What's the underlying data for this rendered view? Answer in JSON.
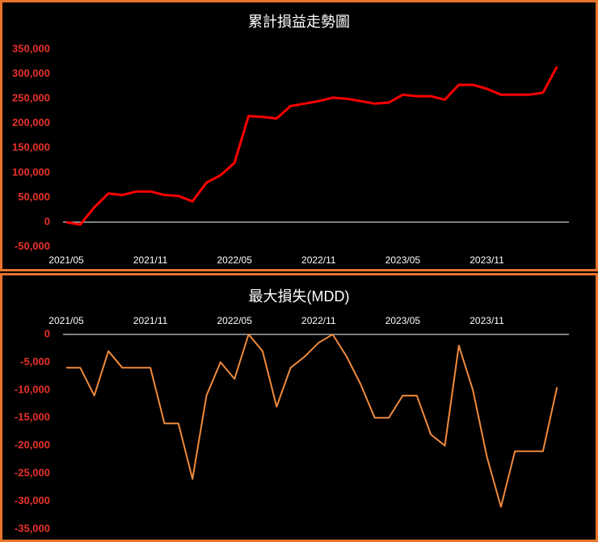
{
  "chart_data": [
    {
      "type": "line",
      "title": "累計損益走勢圖",
      "color": "#ff0000",
      "label_color": "#e8312a",
      "x": [
        "2021/05",
        "2021/06",
        "2021/07",
        "2021/08",
        "2021/09",
        "2021/10",
        "2021/11",
        "2021/12",
        "2022/01",
        "2022/02",
        "2022/03",
        "2022/04",
        "2022/05",
        "2022/06",
        "2022/07",
        "2022/08",
        "2022/09",
        "2022/10",
        "2022/11",
        "2022/12",
        "2023/01",
        "2023/02",
        "2023/03",
        "2023/04",
        "2023/05",
        "2023/06",
        "2023/07",
        "2023/08",
        "2023/09",
        "2023/10",
        "2023/11",
        "2023/12",
        "2024/01",
        "2024/02",
        "2024/03",
        "2024/04"
      ],
      "values": [
        0,
        -5000,
        30000,
        58000,
        55000,
        62000,
        62000,
        55000,
        53000,
        42000,
        80000,
        95000,
        120000,
        215000,
        213000,
        210000,
        235000,
        240000,
        245000,
        252000,
        250000,
        245000,
        240000,
        242000,
        258000,
        255000,
        255000,
        248000,
        278000,
        278000,
        270000,
        258000,
        258000,
        258000,
        262000,
        315000
      ],
      "xticks": [
        "2021/05",
        "2021/11",
        "2022/05",
        "2022/11",
        "2023/05",
        "2023/11"
      ],
      "ylim": [
        -50000,
        350000
      ],
      "yticks": [
        {
          "value": -50000,
          "label": "-50,000"
        },
        0,
        {
          "value": 50000,
          "label": "50,000"
        },
        {
          "value": 100000,
          "label": "100,000"
        },
        {
          "value": 150000,
          "label": "150,000"
        },
        {
          "value": 200000,
          "label": "200,000"
        },
        {
          "value": 250000,
          "label": "250,000"
        },
        {
          "value": 300000,
          "label": "300,000"
        },
        {
          "value": 350000,
          "label": "350,000"
        }
      ]
    },
    {
      "type": "line",
      "title": "最大損失(MDD)",
      "color": "#f08a3c",
      "label_color": "#e8312a",
      "x": [
        "2021/05",
        "2021/06",
        "2021/07",
        "2021/08",
        "2021/09",
        "2021/10",
        "2021/11",
        "2021/12",
        "2022/01",
        "2022/02",
        "2022/03",
        "2022/04",
        "2022/05",
        "2022/06",
        "2022/07",
        "2022/08",
        "2022/09",
        "2022/10",
        "2022/11",
        "2022/12",
        "2023/01",
        "2023/02",
        "2023/03",
        "2023/04",
        "2023/05",
        "2023/06",
        "2023/07",
        "2023/08",
        "2023/09",
        "2023/10",
        "2023/11",
        "2023/12",
        "2024/01",
        "2024/02",
        "2024/03",
        "2024/04"
      ],
      "values": [
        -6000,
        -6000,
        -11000,
        -3000,
        -6000,
        -6000,
        -6000,
        -16000,
        -16000,
        -26000,
        -11000,
        -5000,
        -8000,
        0,
        -3000,
        -13000,
        -6000,
        -4000,
        -1500,
        0,
        -4000,
        -9000,
        -15000,
        -15000,
        -11000,
        -11000,
        -18000,
        -20000,
        -2000,
        -10000,
        -22000,
        -31000,
        -21000,
        -21000,
        -21000,
        -9500
      ],
      "xticks": [
        "2021/05",
        "2021/11",
        "2022/05",
        "2022/11",
        "2023/05",
        "2023/11"
      ],
      "ylim": [
        -35000,
        0
      ],
      "yticks": [
        {
          "value": -35000,
          "label": "-35,000"
        },
        {
          "value": -30000,
          "label": "-30,000"
        },
        {
          "value": -25000,
          "label": "-25,000"
        },
        {
          "value": -20000,
          "label": "-20,000"
        },
        {
          "value": -15000,
          "label": "-15,000"
        },
        {
          "value": -10000,
          "label": "-10,000"
        },
        {
          "value": -5000,
          "label": "-5,000"
        },
        0
      ]
    }
  ]
}
